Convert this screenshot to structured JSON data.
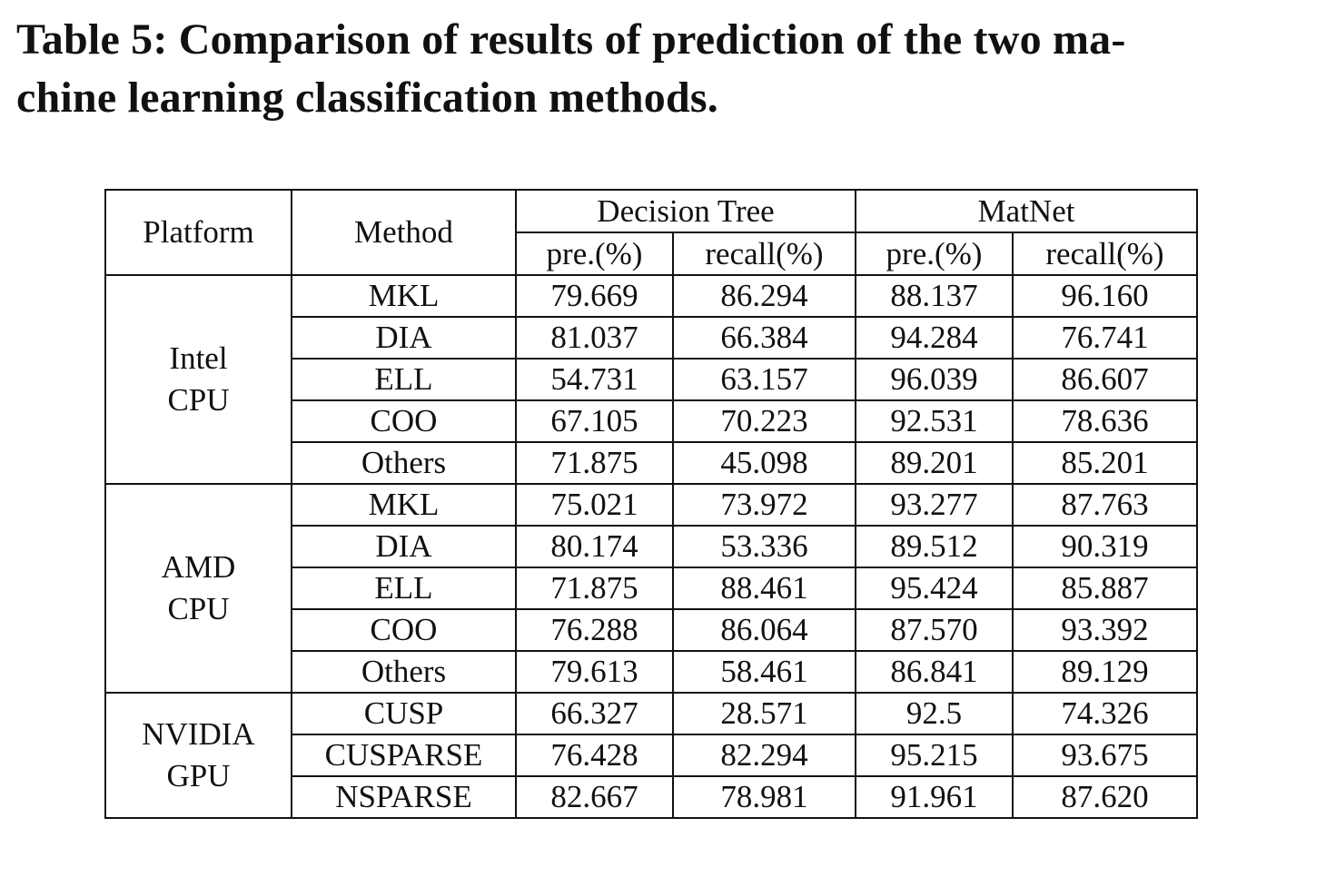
{
  "caption": {
    "line1": "Table 5: Comparison of results of prediction of the two ma-",
    "line2": "chine learning classification methods."
  },
  "table": {
    "headers": {
      "platform": "Platform",
      "method": "Method",
      "group1": "Decision Tree",
      "group2": "MatNet",
      "sub": [
        "pre.(%)",
        "recall(%)",
        "pre.(%)",
        "recall(%)"
      ]
    },
    "platforms": [
      {
        "name": [
          "Intel",
          "CPU"
        ],
        "rows": [
          {
            "method": "MKL",
            "dt_pre": "79.669",
            "dt_recall": "86.294",
            "mn_pre": "88.137",
            "mn_recall": "96.160"
          },
          {
            "method": "DIA",
            "dt_pre": "81.037",
            "dt_recall": "66.384",
            "mn_pre": "94.284",
            "mn_recall": "76.741"
          },
          {
            "method": "ELL",
            "dt_pre": "54.731",
            "dt_recall": "63.157",
            "mn_pre": "96.039",
            "mn_recall": "86.607"
          },
          {
            "method": "COO",
            "dt_pre": "67.105",
            "dt_recall": "70.223",
            "mn_pre": "92.531",
            "mn_recall": "78.636"
          },
          {
            "method": "Others",
            "dt_pre": "71.875",
            "dt_recall": "45.098",
            "mn_pre": "89.201",
            "mn_recall": "85.201"
          }
        ]
      },
      {
        "name": [
          "AMD",
          "CPU"
        ],
        "rows": [
          {
            "method": "MKL",
            "dt_pre": "75.021",
            "dt_recall": "73.972",
            "mn_pre": "93.277",
            "mn_recall": "87.763"
          },
          {
            "method": "DIA",
            "dt_pre": "80.174",
            "dt_recall": "53.336",
            "mn_pre": "89.512",
            "mn_recall": "90.319"
          },
          {
            "method": "ELL",
            "dt_pre": "71.875",
            "dt_recall": "88.461",
            "mn_pre": "95.424",
            "mn_recall": "85.887"
          },
          {
            "method": "COO",
            "dt_pre": "76.288",
            "dt_recall": "86.064",
            "mn_pre": "87.570",
            "mn_recall": "93.392"
          },
          {
            "method": "Others",
            "dt_pre": "79.613",
            "dt_recall": "58.461",
            "mn_pre": "86.841",
            "mn_recall": "89.129"
          }
        ]
      },
      {
        "name": [
          "NVIDIA",
          "GPU"
        ],
        "rows": [
          {
            "method": "CUSP",
            "dt_pre": "66.327",
            "dt_recall": "28.571",
            "mn_pre": "92.5",
            "mn_recall": "74.326"
          },
          {
            "method": "CUSPARSE",
            "dt_pre": "76.428",
            "dt_recall": "82.294",
            "mn_pre": "95.215",
            "mn_recall": "93.675"
          },
          {
            "method": "NSPARSE",
            "dt_pre": "82.667",
            "dt_recall": "78.981",
            "mn_pre": "91.961",
            "mn_recall": "87.620"
          }
        ]
      }
    ]
  }
}
